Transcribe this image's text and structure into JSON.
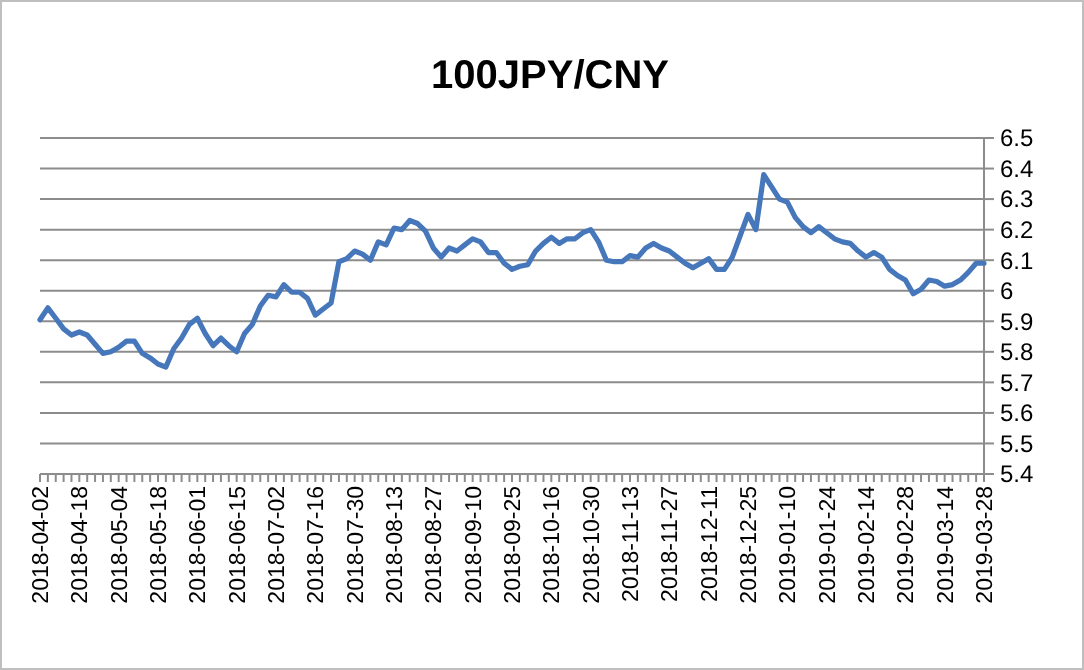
{
  "chart_data": {
    "type": "line",
    "title": "100JPY/CNY",
    "categories": [
      "2018-04-02",
      null,
      null,
      null,
      null,
      "2018-04-18",
      null,
      null,
      null,
      null,
      "2018-05-04",
      null,
      null,
      null,
      null,
      "2018-05-18",
      null,
      null,
      null,
      null,
      "2018-06-01",
      null,
      null,
      null,
      null,
      "2018-06-15",
      null,
      null,
      null,
      null,
      "2018-07-02",
      null,
      null,
      null,
      null,
      "2018-07-16",
      null,
      null,
      null,
      null,
      "2018-07-30",
      null,
      null,
      null,
      null,
      "2018-08-13",
      null,
      null,
      null,
      null,
      "2018-08-27",
      null,
      null,
      null,
      null,
      "2018-09-10",
      null,
      null,
      null,
      null,
      "2018-09-25",
      null,
      null,
      null,
      null,
      "2018-10-16",
      null,
      null,
      null,
      null,
      "2018-10-30",
      null,
      null,
      null,
      null,
      "2018-11-13",
      null,
      null,
      null,
      null,
      "2018-11-27",
      null,
      null,
      null,
      null,
      "2018-12-11",
      null,
      null,
      null,
      null,
      "2018-12-25",
      null,
      null,
      null,
      null,
      "2019-01-10",
      null,
      null,
      null,
      null,
      "2019-01-24",
      null,
      null,
      null,
      null,
      "2019-02-14",
      null,
      null,
      null,
      null,
      "2019-02-28",
      null,
      null,
      null,
      null,
      "2019-03-14",
      null,
      null,
      null,
      null,
      "2019-03-28"
    ],
    "series": [
      {
        "color": "#4677bb",
        "values": [
          5.905,
          5.944,
          5.91,
          5.875,
          5.855,
          5.865,
          5.855,
          5.825,
          5.795,
          5.8,
          5.815,
          5.835,
          5.835,
          5.795,
          5.78,
          5.76,
          5.75,
          5.81,
          5.845,
          5.89,
          5.91,
          5.86,
          5.82,
          5.845,
          5.82,
          5.8,
          5.86,
          5.89,
          5.95,
          5.985,
          5.98,
          6.02,
          5.995,
          5.995,
          5.975,
          5.92,
          5.94,
          5.96,
          6.095,
          6.105,
          6.13,
          6.12,
          6.1,
          6.16,
          6.15,
          6.205,
          6.2,
          6.23,
          6.22,
          6.195,
          6.14,
          6.11,
          6.14,
          6.13,
          6.15,
          6.17,
          6.16,
          6.125,
          6.125,
          6.09,
          6.07,
          6.08,
          6.085,
          6.13,
          6.155,
          6.175,
          6.155,
          6.17,
          6.17,
          6.19,
          6.2,
          6.16,
          6.1,
          6.095,
          6.095,
          6.115,
          6.11,
          6.14,
          6.155,
          6.14,
          6.13,
          6.11,
          6.09,
          6.075,
          6.09,
          6.105,
          6.07,
          6.07,
          6.11,
          6.18,
          6.25,
          6.2,
          6.38,
          6.34,
          6.3,
          6.29,
          6.24,
          6.21,
          6.19,
          6.21,
          6.19,
          6.17,
          6.16,
          6.155,
          6.13,
          6.11,
          6.125,
          6.11,
          6.07,
          6.05,
          6.035,
          5.99,
          6.005,
          6.035,
          6.03,
          6.015,
          6.02,
          6.035,
          6.06,
          6.09,
          6.09
        ]
      }
    ],
    "ylim": [
      5.4,
      6.5
    ],
    "yticks": [
      5.4,
      5.5,
      5.6,
      5.7,
      5.8,
      5.9,
      6,
      6.1,
      6.2,
      6.3,
      6.4,
      6.5
    ],
    "grid": "y"
  }
}
